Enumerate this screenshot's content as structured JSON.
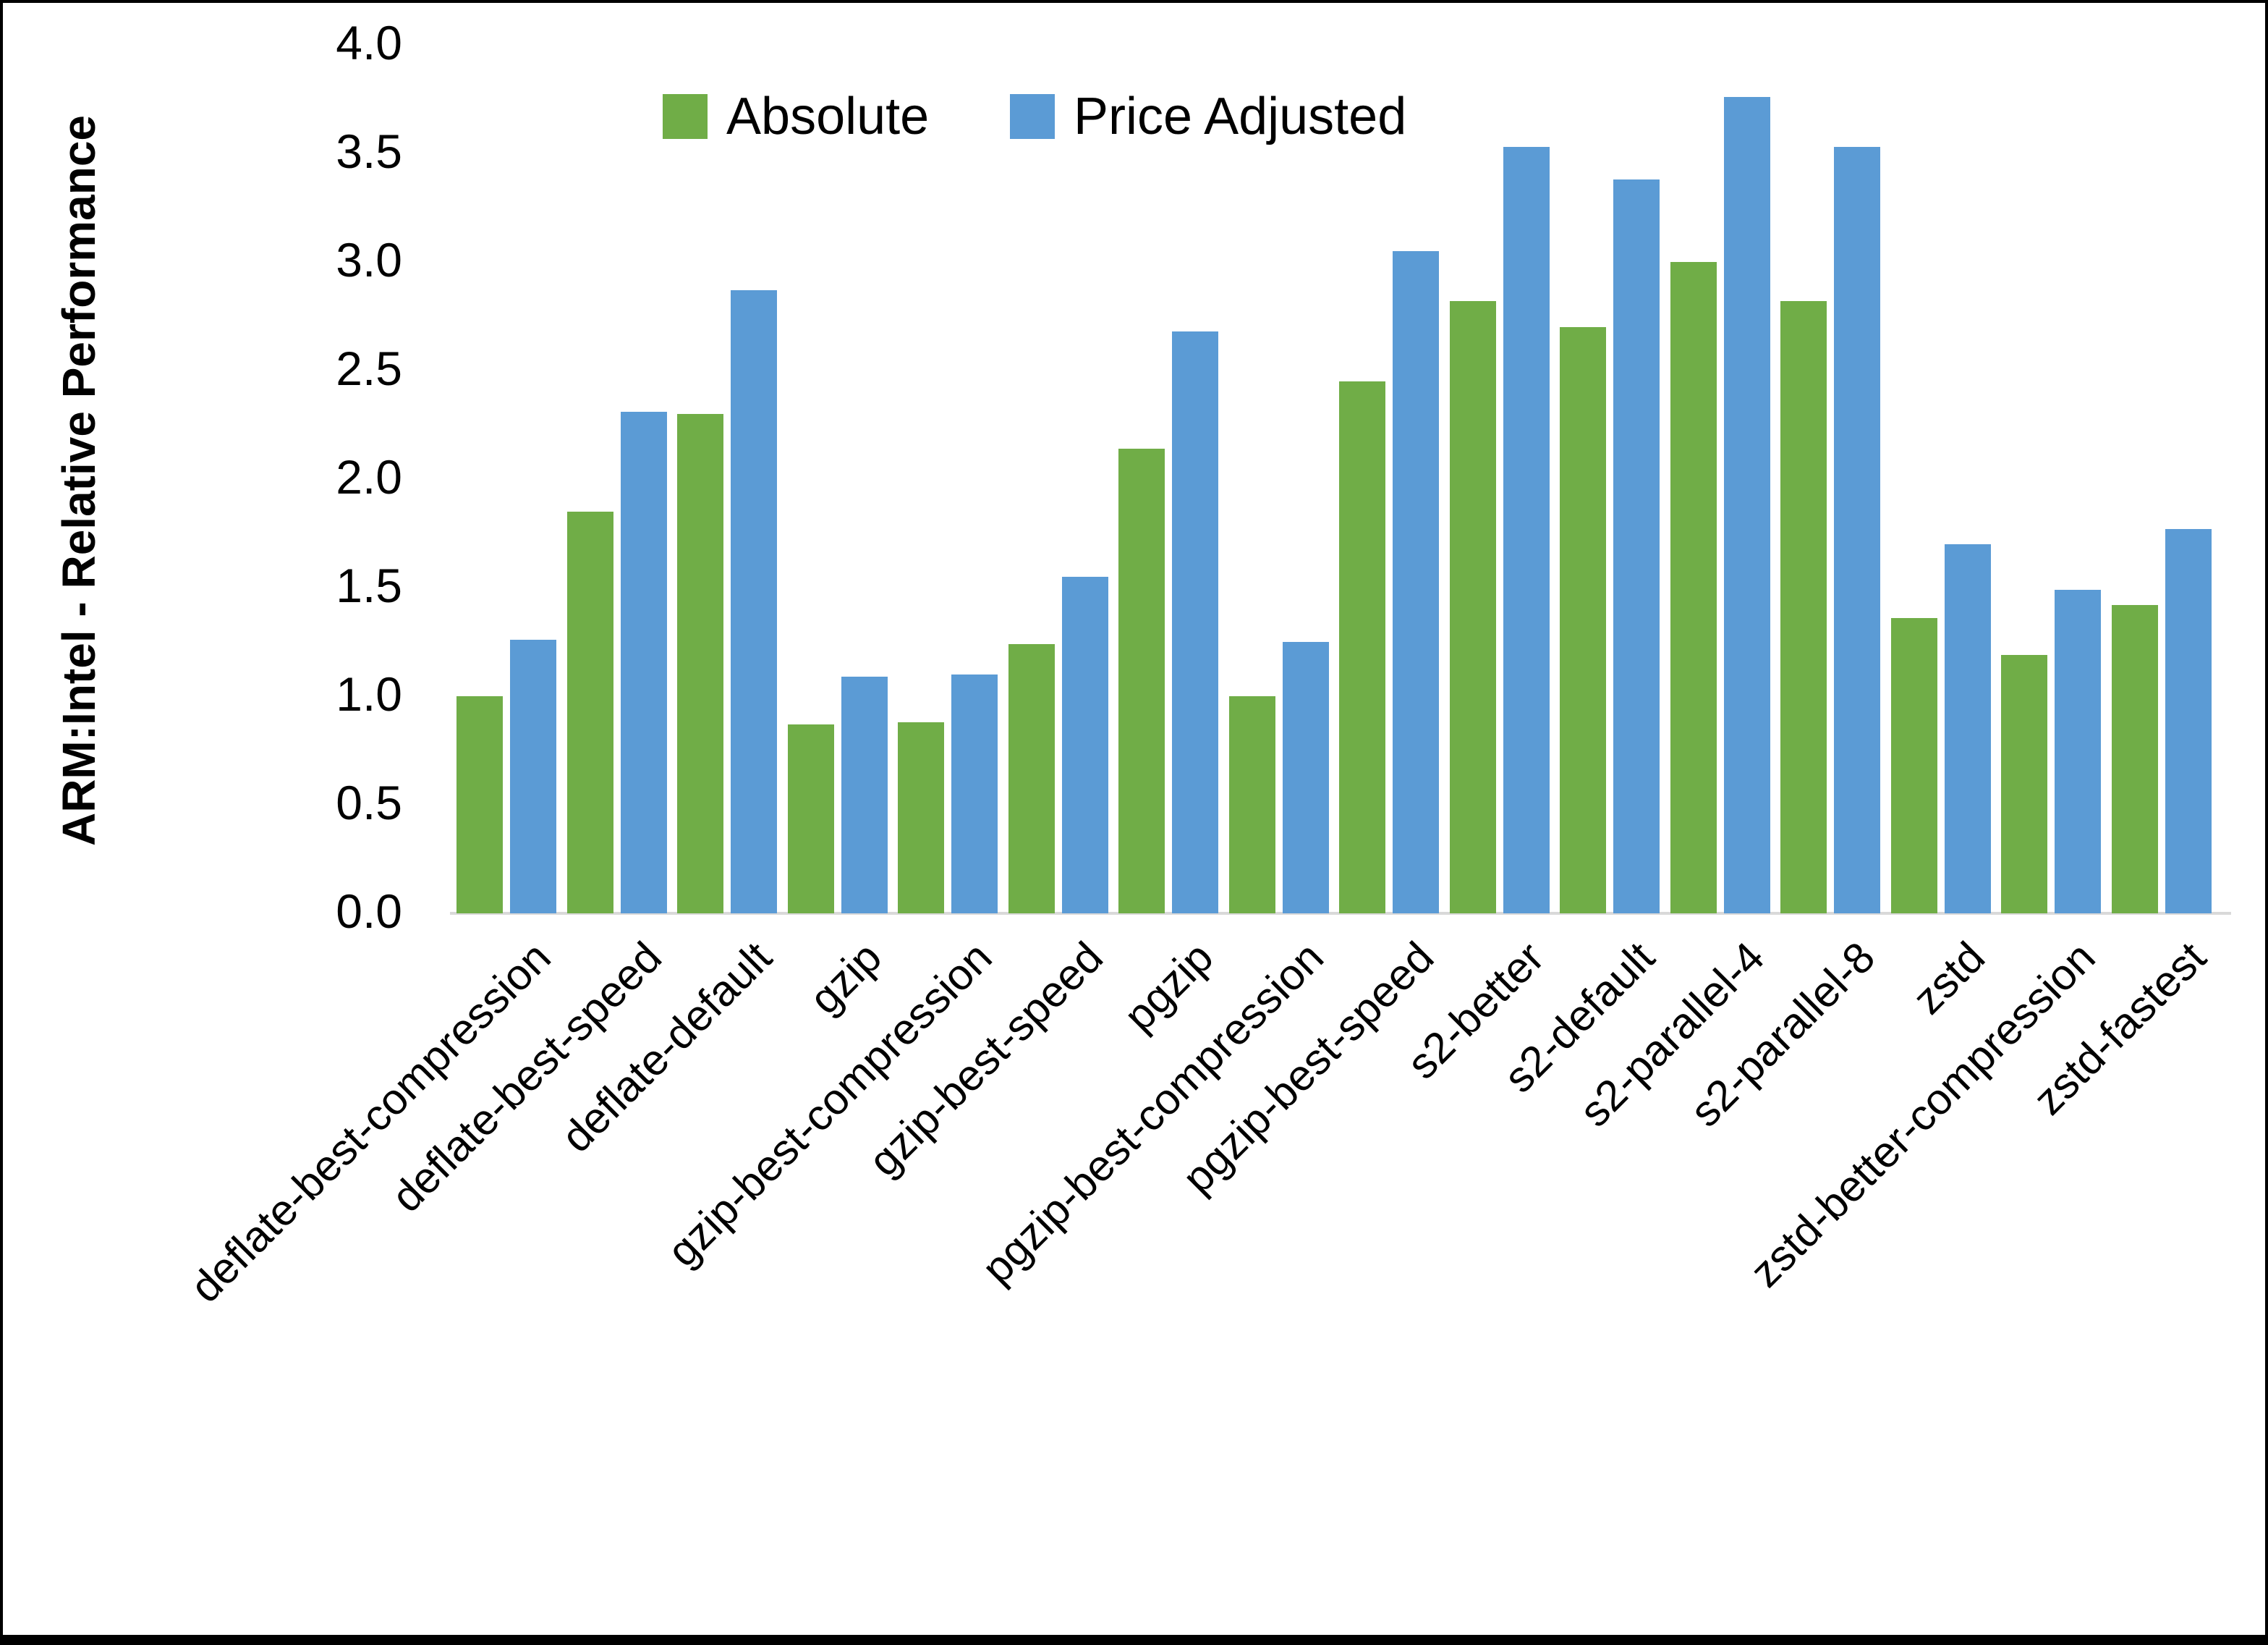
{
  "chart_data": {
    "type": "bar",
    "title": "",
    "xlabel": "",
    "ylabel": "ARM:Intel - Relative Performance",
    "ylim": [
      0.0,
      4.0
    ],
    "ytick_step": 0.5,
    "ytick_labels": [
      "0.0",
      "0.5",
      "1.0",
      "1.5",
      "2.0",
      "2.5",
      "3.0",
      "3.5",
      "4.0"
    ],
    "grid": false,
    "legend_position": "top-center",
    "categories": [
      "deflate-best-compression",
      "deflate-best-speed",
      "deflate-default",
      "gzip",
      "gzip-best-compression",
      "gzip-best-speed",
      "pgzip",
      "pgzip-best-compression",
      "pgzip-best-speed",
      "s2-better",
      "s2-default",
      "s2-parallel-4",
      "s2-parallel-8",
      "zstd",
      "zstd-better-compression",
      "zstd-fastest"
    ],
    "series": [
      {
        "name": "Absolute",
        "color": "#70AD47",
        "values": [
          1.0,
          1.85,
          2.3,
          0.87,
          0.88,
          1.24,
          2.14,
          1.0,
          2.45,
          2.82,
          2.7,
          3.0,
          2.82,
          1.36,
          1.19,
          1.42
        ]
      },
      {
        "name": "Price Adjusted",
        "color": "#5B9BD5",
        "values": [
          1.26,
          2.31,
          2.87,
          1.09,
          1.1,
          1.55,
          2.68,
          1.25,
          3.05,
          3.53,
          3.38,
          3.76,
          3.53,
          1.7,
          1.49,
          1.77
        ]
      }
    ],
    "colors": {
      "axis_line": "#D9D9D9",
      "text": "#000000",
      "background": "#FFFFFF",
      "frame_border": "#000000"
    }
  }
}
